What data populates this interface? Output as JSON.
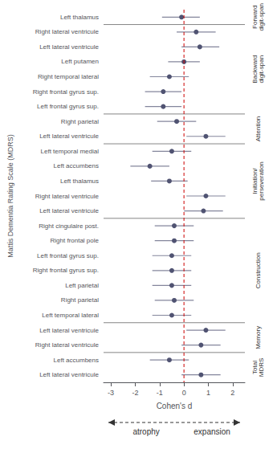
{
  "chart_data": {
    "type": "forest",
    "xlabel": "Cohen's d",
    "ylabel": "Mattis Dementia Rating Scale (MDRS)",
    "categories": [
      "Left thalamus",
      "Right lateral ventricule",
      "Left lateral ventricule",
      "Left putamen",
      "Right temporal lateral",
      "Right frontal gyrus sup.",
      "Left frontal gyrus sup.",
      "Right parietal",
      "Left lateral ventricule",
      "Left temporal medial",
      "Left accumbens",
      "Left thalamus",
      "Right lateral ventricule",
      "Left lateral ventricule",
      "Right cingulaire post.",
      "Right frontal pole",
      "Left frontal gyrus sup.",
      "Right frontal gyrus sup.",
      "Left parietal",
      "Right parietal",
      "Left temporal lateral",
      "Left lateral ventricule",
      "Right lateral ventricule",
      "Left accumbens",
      "Left lateral ventricule"
    ],
    "values": [
      -0.1,
      0.5,
      0.65,
      0.0,
      -0.6,
      -0.85,
      -0.85,
      -0.3,
      0.9,
      -0.5,
      -1.4,
      -0.6,
      0.9,
      0.8,
      -0.4,
      -0.4,
      -0.5,
      -0.5,
      -0.5,
      -0.4,
      -0.5,
      0.9,
      0.7,
      -0.6,
      0.7
    ],
    "ci_lo": [
      -0.9,
      -0.3,
      -0.1,
      -0.65,
      -1.4,
      -1.6,
      -1.6,
      -1.1,
      0.1,
      -1.3,
      -2.2,
      -1.35,
      0.1,
      0.0,
      -1.2,
      -1.2,
      -1.3,
      -1.3,
      -1.3,
      -1.2,
      -1.3,
      0.1,
      -0.1,
      -1.4,
      -0.1
    ],
    "ci_hi": [
      0.65,
      1.3,
      1.45,
      0.65,
      0.2,
      -0.1,
      -0.1,
      0.5,
      1.7,
      0.3,
      -0.6,
      0.15,
      1.7,
      1.6,
      0.4,
      0.4,
      0.3,
      0.3,
      0.3,
      0.4,
      0.3,
      1.7,
      1.5,
      0.2,
      1.5
    ],
    "groups": [
      {
        "name": "Forward\ndigit-span",
        "row_start": 0,
        "row_end": 0
      },
      {
        "name": "Backward\ndigit-span",
        "row_start": 1,
        "row_end": 6
      },
      {
        "name": "Attention",
        "row_start": 7,
        "row_end": 8
      },
      {
        "name": "Initiation/\nperseveration",
        "row_start": 9,
        "row_end": 13
      },
      {
        "name": "Construction",
        "row_start": 14,
        "row_end": 20
      },
      {
        "name": "Memory",
        "row_start": 21,
        "row_end": 22
      },
      {
        "name": "Total\nMDRS",
        "row_start": 23,
        "row_end": 24
      }
    ],
    "reference_line": {
      "x": 0,
      "color": "#cc0000"
    },
    "arrow_labels": {
      "left": "atrophy",
      "right": "expansion"
    },
    "xlim": [
      -3.3,
      2.5
    ],
    "xticks": [
      -3,
      -2,
      -1,
      0,
      1,
      2
    ],
    "grid": false
  }
}
